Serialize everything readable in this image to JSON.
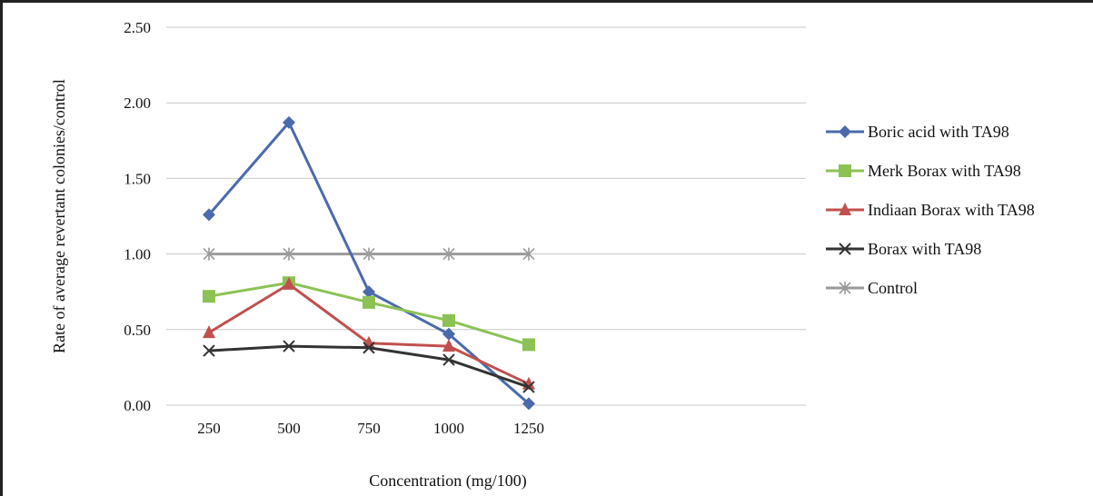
{
  "chart_data": {
    "type": "line",
    "xlabel": "Concentration (mg/100)",
    "ylabel": "Rate of average revertant colonies/control",
    "categories": [
      "250",
      "500",
      "750",
      "1000",
      "1250"
    ],
    "ylim": [
      0,
      2.5
    ],
    "yticks": [
      "0.00",
      "0.50",
      "1.00",
      "1.50",
      "2.00",
      "2.50"
    ],
    "grid": "horizontal",
    "legend_position": "right",
    "series": [
      {
        "name": "Boric acid with TA98",
        "color": "#4a6aab",
        "marker": "diamond",
        "values": [
          1.26,
          1.87,
          0.75,
          0.47,
          0.01
        ]
      },
      {
        "name": "Merk Borax with TA98",
        "color": "#8cc255",
        "marker": "square",
        "values": [
          0.72,
          0.81,
          0.68,
          0.56,
          0.4
        ]
      },
      {
        "name": "Indiaan Borax with TA98",
        "color": "#c0504d",
        "marker": "triangle",
        "values": [
          0.48,
          0.8,
          0.41,
          0.39,
          0.14
        ]
      },
      {
        "name": "Borax with TA98",
        "color": "#333333",
        "marker": "x",
        "values": [
          0.36,
          0.39,
          0.38,
          0.3,
          0.12
        ]
      },
      {
        "name": "Control",
        "color": "#9a9a9a",
        "marker": "asterisk",
        "values": [
          1.0,
          1.0,
          1.0,
          1.0,
          1.0
        ]
      }
    ]
  }
}
